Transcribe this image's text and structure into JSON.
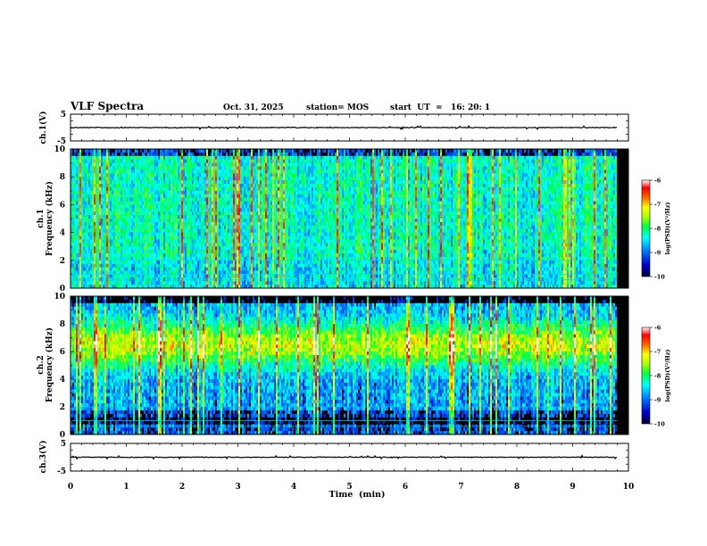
{
  "header": {
    "title": "VLF Spectra",
    "date": "Oct. 31, 2025",
    "station": "station= MOS",
    "start": "start  UT  =   16: 20: 1"
  },
  "chart_data": [
    {
      "type": "line",
      "name": "ch1-waveform",
      "ylabel": "ch.1(V)",
      "ylim": [
        -5,
        5
      ],
      "yticks": [
        "5",
        "-5"
      ],
      "baseline": 0
    },
    {
      "type": "heatmap",
      "name": "ch1-spectrogram",
      "ylabel": "ch.1",
      "ylabel2": "Frequency (kHz)",
      "ylim": [
        0,
        10
      ],
      "yticks": [
        "0",
        "2",
        "4",
        "6",
        "8",
        "10"
      ],
      "xlim": [
        0,
        10
      ],
      "data_end_min": 9.8,
      "colorbar": {
        "label": "log(PSD)(V²/Hz)",
        "range": [
          -10,
          -6
        ],
        "ticks": [
          "-6",
          "-7",
          "-8",
          "-9",
          "-10"
        ]
      }
    },
    {
      "type": "heatmap",
      "name": "ch2-spectrogram",
      "ylabel": "ch.2",
      "ylabel2": "Frequency (kHz)",
      "ylim": [
        0,
        10
      ],
      "yticks": [
        "0",
        "2",
        "4",
        "6",
        "8",
        "10"
      ],
      "xlim": [
        0,
        10
      ],
      "data_end_min": 9.8,
      "colorbar": {
        "label": "log(PSD)(V²/Hz)",
        "range": [
          -10,
          -6
        ],
        "ticks": [
          "-6",
          "-7",
          "-8",
          "-9",
          "-10"
        ]
      }
    },
    {
      "type": "line",
      "name": "ch3-waveform",
      "ylabel": "ch.3(V)",
      "ylim": [
        -5,
        5
      ],
      "yticks": [
        "5",
        "-5"
      ],
      "baseline": 0
    }
  ],
  "xaxis": {
    "label": "Time  (min)",
    "ticks": [
      "0",
      "1",
      "2",
      "3",
      "4",
      "5",
      "6",
      "7",
      "8",
      "9",
      "10"
    ],
    "range": [
      0,
      10
    ]
  },
  "colors": {
    "colormap": [
      "#000066",
      "#0000ff",
      "#00aaff",
      "#00ffff",
      "#00ff66",
      "#aaff00",
      "#ffff00",
      "#ff8800",
      "#ff0000",
      "#ffffff"
    ],
    "axis": "#000000",
    "trace": "#000000"
  }
}
